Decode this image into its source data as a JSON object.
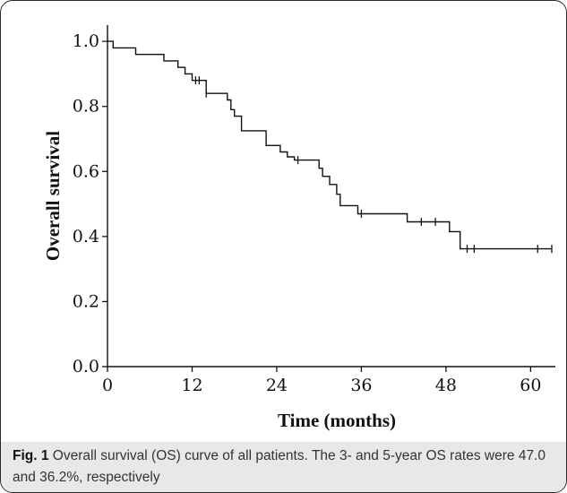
{
  "caption": {
    "label": "Fig. 1",
    "text": " Overall survival (OS) curve of all patients. The 3- and 5-year OS rates were 47.0 and 36.2%, respectively"
  },
  "colors": {
    "line": "#111111",
    "axis": "#111111"
  },
  "chart_data": {
    "type": "line",
    "subtype": "kaplan-meier-step",
    "title": "",
    "xlabel": "Time (months)",
    "ylabel": "Overall survival",
    "xlim": [
      0,
      63
    ],
    "ylim": [
      0,
      1.05
    ],
    "x_ticks": [
      0,
      12,
      24,
      36,
      48,
      60
    ],
    "x_tick_labels": [
      "0",
      "12",
      "24",
      "36",
      "48",
      "60"
    ],
    "y_ticks": [
      0,
      0.2,
      0.4,
      0.6,
      0.8,
      1.0
    ],
    "y_tick_labels": [
      "0.0",
      "0.2",
      "0.4",
      "0.6",
      "0.8",
      "1.0"
    ],
    "grid": false,
    "legend": "none",
    "series": [
      {
        "steps": [
          [
            0,
            1.0
          ],
          [
            0.8,
            0.98
          ],
          [
            4,
            0.96
          ],
          [
            8,
            0.94
          ],
          [
            10,
            0.92
          ],
          [
            11,
            0.9
          ],
          [
            12,
            0.88
          ],
          [
            14,
            0.84
          ],
          [
            17,
            0.82
          ],
          [
            17.5,
            0.79
          ],
          [
            18,
            0.77
          ],
          [
            19,
            0.725
          ],
          [
            22.5,
            0.68
          ],
          [
            24.5,
            0.66
          ],
          [
            25.5,
            0.645
          ],
          [
            26.5,
            0.635
          ],
          [
            30,
            0.61
          ],
          [
            30.5,
            0.585
          ],
          [
            31.5,
            0.56
          ],
          [
            32.5,
            0.53
          ],
          [
            33,
            0.495
          ],
          [
            35.5,
            0.47
          ],
          [
            42.5,
            0.445
          ],
          [
            48.5,
            0.415
          ],
          [
            50,
            0.362
          ],
          [
            63,
            0.362
          ]
        ],
        "censor_marks": [
          [
            12.5,
            0.88
          ],
          [
            13,
            0.88
          ],
          [
            14,
            0.84
          ],
          [
            27,
            0.635
          ],
          [
            36,
            0.47
          ],
          [
            44.5,
            0.445
          ],
          [
            46.5,
            0.445
          ],
          [
            51,
            0.362
          ],
          [
            52,
            0.362
          ],
          [
            61,
            0.362
          ],
          [
            63,
            0.362
          ]
        ]
      }
    ]
  }
}
